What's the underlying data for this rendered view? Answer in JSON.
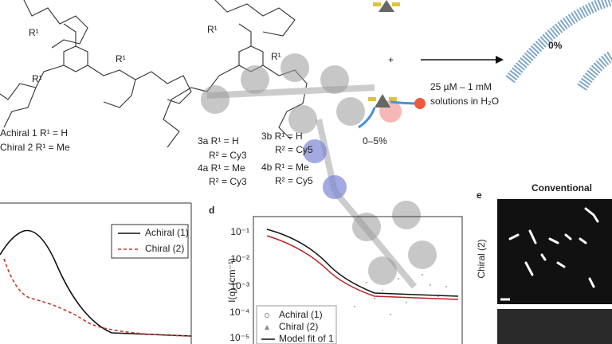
{
  "panel_a": {
    "compounds": [
      "Achiral 1 R¹ = H",
      "Chiral 2 R¹ = Me"
    ],
    "labels": [
      "R¹",
      "R¹",
      "R¹"
    ]
  },
  "panel_b": {
    "compounds": [
      {
        "name": "3a R¹ = H",
        "r2": "R² = Cy3"
      },
      {
        "name": "4a R¹ = Me",
        "r2": "R² = Cy3"
      },
      {
        "name": "3b R¹ = H",
        "r2": "R² = Cy5"
      },
      {
        "name": "4b R¹ = Me",
        "r2": "R² = Cy5"
      }
    ],
    "labels": [
      "R¹",
      "R¹"
    ]
  },
  "scheme": {
    "plus": "+",
    "fraction": "0–5%",
    "conditions": [
      "25 µM – 1 mM",
      "solutions in H₂O"
    ],
    "product": "0%"
  },
  "panel_c": {
    "legend": [
      "Achiral (1)",
      "Chiral (2)"
    ]
  },
  "panel_d": {
    "letter": "d",
    "y_label": "I(q) (cm⁻¹)",
    "yticks": [
      "10⁻¹",
      "10⁻²",
      "10⁻³",
      "10⁻⁴",
      "10⁻⁵"
    ],
    "legend": [
      "Achiral (1)",
      "Chiral (2)",
      "Model fit of 1"
    ]
  },
  "panel_e": {
    "letter": "e",
    "title": "Conventional",
    "row_label": "Chiral (2)"
  }
}
